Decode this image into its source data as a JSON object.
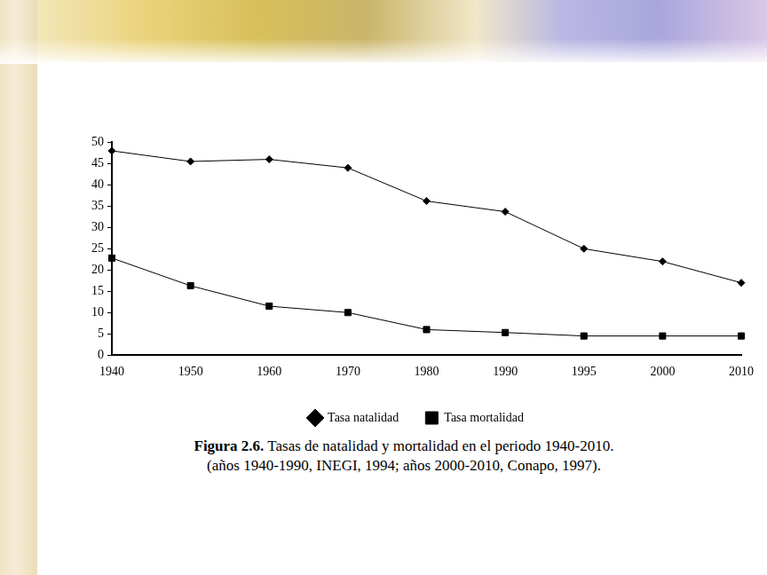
{
  "chart_data": {
    "type": "line",
    "title": "Figura 2.6. Tasas de natalidad y mortalidad en el periodo 1940-2010.",
    "subtitle": "(años 1940-1990, INEGI, 1994; años 2000-2010, Conapo, 1997).",
    "categories": [
      "1940",
      "1950",
      "1960",
      "1970",
      "1980",
      "1990",
      "1995",
      "2000",
      "2010"
    ],
    "series": [
      {
        "name": "Tasa natalidad",
        "color": "#000000",
        "marker": "diamond",
        "line_style": "solid",
        "values": [
          48,
          45.5,
          46,
          44,
          36.2,
          33.7,
          25,
          22,
          17
        ]
      },
      {
        "name": "Tasa mortalidad",
        "color": "#000000",
        "marker": "square",
        "line_style": "solid",
        "values": [
          22.8,
          16.3,
          11.5,
          10,
          6,
          5.3,
          4.5,
          4.5,
          4.5
        ]
      }
    ],
    "ylim": [
      0,
      50
    ],
    "yticks": [
      0,
      5,
      10,
      15,
      20,
      25,
      30,
      35,
      40,
      45,
      50
    ],
    "grid": false,
    "legend": "bottom"
  }
}
